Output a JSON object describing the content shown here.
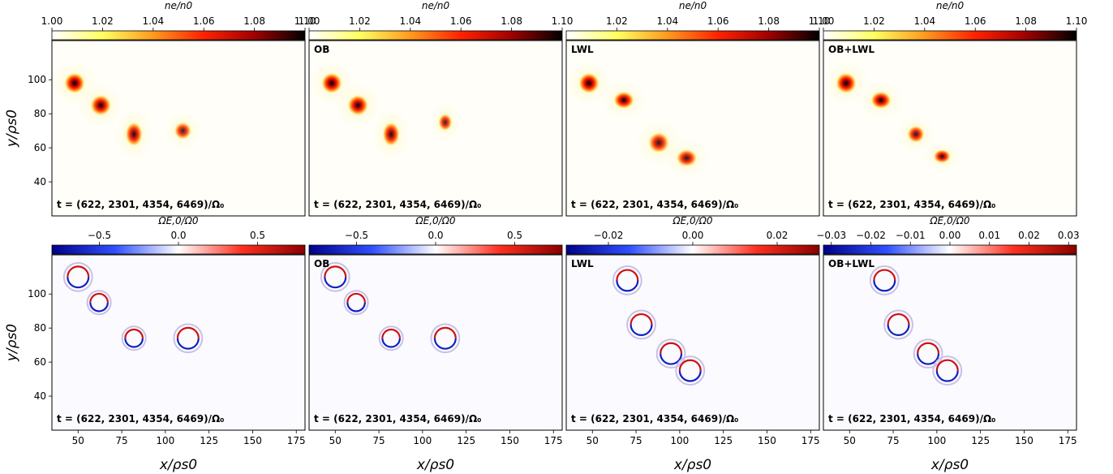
{
  "chart_data": {
    "type": "heatmap",
    "time_annotation": "t = (622, 2301, 4354, 6469)/Ω₀",
    "xlabel": "x/ρs0",
    "ylabel": "y/ρs0",
    "xticks": [
      50,
      75,
      100,
      125,
      150,
      175
    ],
    "yticks": [
      40,
      60,
      80,
      100
    ],
    "xlim": [
      35,
      180
    ],
    "ylim": [
      20,
      123
    ],
    "rows": [
      {
        "quantity": "density",
        "colorbar_label": "ne/n0",
        "colormap": [
          "#ffffff",
          "#ffff60",
          "#ff9a1e",
          "#ff2200",
          "#a00000",
          "#000000"
        ],
        "panels": [
          {
            "label": "",
            "cbar_ticks": [
              "1.00",
              "1.02",
              "1.04",
              "1.06",
              "1.08",
              "1.10"
            ],
            "blobs": [
              {
                "x": 48,
                "y": 98,
                "peak": 1.1,
                "rx": 6,
                "ry": 6
              },
              {
                "x": 63,
                "y": 85,
                "peak": 1.09,
                "rx": 6,
                "ry": 6
              },
              {
                "x": 82,
                "y": 68,
                "peak": 1.08,
                "rx": 5,
                "ry": 7
              },
              {
                "x": 110,
                "y": 70,
                "peak": 1.06,
                "rx": 5,
                "ry": 5
              }
            ]
          },
          {
            "label": "OB",
            "cbar_ticks": [
              "1.00",
              "1.02",
              "1.04",
              "1.06",
              "1.08",
              "1.10"
            ],
            "blobs": [
              {
                "x": 48,
                "y": 98,
                "peak": 1.1,
                "rx": 6,
                "ry": 6
              },
              {
                "x": 63,
                "y": 85,
                "peak": 1.09,
                "rx": 6,
                "ry": 6
              },
              {
                "x": 82,
                "y": 68,
                "peak": 1.08,
                "rx": 5,
                "ry": 7
              },
              {
                "x": 113,
                "y": 75,
                "peak": 1.06,
                "rx": 4,
                "ry": 5
              }
            ]
          },
          {
            "label": "LWL",
            "cbar_ticks": [
              "1.02",
              "1.04",
              "1.06",
              "1.08",
              "1.10"
            ],
            "blobs": [
              {
                "x": 48,
                "y": 98,
                "peak": 1.1,
                "rx": 6,
                "ry": 6
              },
              {
                "x": 68,
                "y": 88,
                "peak": 1.09,
                "rx": 6,
                "ry": 5
              },
              {
                "x": 88,
                "y": 63,
                "peak": 1.07,
                "rx": 6,
                "ry": 6
              },
              {
                "x": 104,
                "y": 54,
                "peak": 1.07,
                "rx": 6,
                "ry": 5
              }
            ]
          },
          {
            "label": "OB+LWL",
            "cbar_ticks": [
              "1.00",
              "1.02",
              "1.04",
              "1.06",
              "1.08",
              "1.10"
            ],
            "blobs": [
              {
                "x": 48,
                "y": 98,
                "peak": 1.1,
                "rx": 6,
                "ry": 6
              },
              {
                "x": 68,
                "y": 88,
                "peak": 1.09,
                "rx": 6,
                "ry": 5
              },
              {
                "x": 88,
                "y": 68,
                "peak": 1.07,
                "rx": 5,
                "ry": 5
              },
              {
                "x": 103,
                "y": 55,
                "peak": 1.08,
                "rx": 5,
                "ry": 4
              }
            ]
          }
        ]
      },
      {
        "quantity": "vorticity",
        "colorbar_label": "ΩE,0/Ω0",
        "colormap": [
          "#00008b",
          "#3050ff",
          "#ffffff",
          "#ff3020",
          "#8b0000"
        ],
        "panels": [
          {
            "label": "",
            "cbar_ticks": [
              "-0.5",
              "0.0",
              "0.5"
            ],
            "cbar_range": [
              -0.8,
              0.8
            ],
            "rings": [
              {
                "x": 50,
                "y": 110,
                "r": 6
              },
              {
                "x": 62,
                "y": 95,
                "r": 5
              },
              {
                "x": 82,
                "y": 74,
                "r": 5
              },
              {
                "x": 113,
                "y": 74,
                "r": 6
              }
            ]
          },
          {
            "label": "OB",
            "cbar_ticks": [
              "-0.5",
              "0.0",
              "0.5"
            ],
            "cbar_range": [
              -0.8,
              0.8
            ],
            "rings": [
              {
                "x": 50,
                "y": 110,
                "r": 6
              },
              {
                "x": 62,
                "y": 95,
                "r": 5
              },
              {
                "x": 82,
                "y": 74,
                "r": 5
              },
              {
                "x": 113,
                "y": 74,
                "r": 6
              }
            ]
          },
          {
            "label": "LWL",
            "cbar_ticks": [
              "-0.02",
              "0.00",
              "0.02"
            ],
            "cbar_range": [
              -0.03,
              0.03
            ],
            "rings": [
              {
                "x": 70,
                "y": 108,
                "r": 6
              },
              {
                "x": 78,
                "y": 82,
                "r": 6
              },
              {
                "x": 95,
                "y": 65,
                "r": 6
              },
              {
                "x": 106,
                "y": 55,
                "r": 6
              }
            ]
          },
          {
            "label": "OB+LWL",
            "cbar_ticks": [
              "-0.03",
              "-0.02",
              "-0.01",
              "0.00",
              "0.01",
              "0.02",
              "0.03"
            ],
            "cbar_range": [
              -0.032,
              0.032
            ],
            "rings": [
              {
                "x": 70,
                "y": 108,
                "r": 6
              },
              {
                "x": 78,
                "y": 82,
                "r": 6
              },
              {
                "x": 95,
                "y": 65,
                "r": 6
              },
              {
                "x": 106,
                "y": 55,
                "r": 6
              }
            ]
          }
        ]
      }
    ]
  }
}
